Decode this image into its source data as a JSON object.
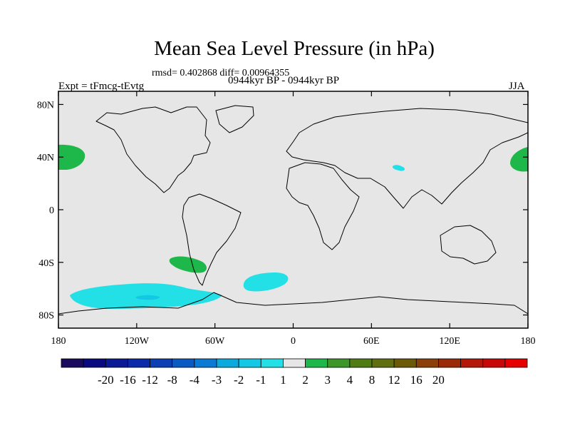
{
  "title": "Mean Sea Level Pressure (in hPa)",
  "stats": "rmsd= 0.402868 diff= 0.00964355",
  "subtitle_left": "Expt = tFmcg-tEvtg",
  "subtitle_center": "0944kyr BP - 0944kyr BP",
  "subtitle_right": "JJA",
  "map": {
    "lon_range": [
      -180,
      180
    ],
    "lat_range": [
      -90,
      90
    ],
    "lat_ticks": [
      {
        "value": 80,
        "label": "80N"
      },
      {
        "value": 40,
        "label": "40N"
      },
      {
        "value": 0,
        "label": "0"
      },
      {
        "value": -40,
        "label": "40S"
      },
      {
        "value": -80,
        "label": "80S"
      }
    ],
    "lon_ticks": [
      {
        "value": -180,
        "label": "180"
      },
      {
        "value": -120,
        "label": "120W"
      },
      {
        "value": -60,
        "label": "60W"
      },
      {
        "value": 0,
        "label": "0"
      },
      {
        "value": 60,
        "label": "60E"
      },
      {
        "value": 120,
        "label": "120E"
      },
      {
        "value": 180,
        "label": "180"
      }
    ],
    "background_color": "#e6e6e6",
    "coastline_color": "#000000"
  },
  "colorbar": {
    "colors": [
      "#1a0a5e",
      "#0a0a80",
      "#0a1a96",
      "#0a2aaa",
      "#0a40b4",
      "#0a5ac4",
      "#0a7ad4",
      "#0aaade",
      "#12c8e4",
      "#22e0e6",
      "#e6e6e6",
      "#1eb84a",
      "#3c9628",
      "#507c14",
      "#607010",
      "#6c5a08",
      "#8a4008",
      "#9a2a08",
      "#b41808",
      "#c80808",
      "#e60000"
    ],
    "labels": [
      "-20",
      "-16",
      "-12",
      "-8",
      "-4",
      "-3",
      "-2",
      "-1",
      "1",
      "2",
      "3",
      "4",
      "8",
      "12",
      "16",
      "20"
    ]
  }
}
